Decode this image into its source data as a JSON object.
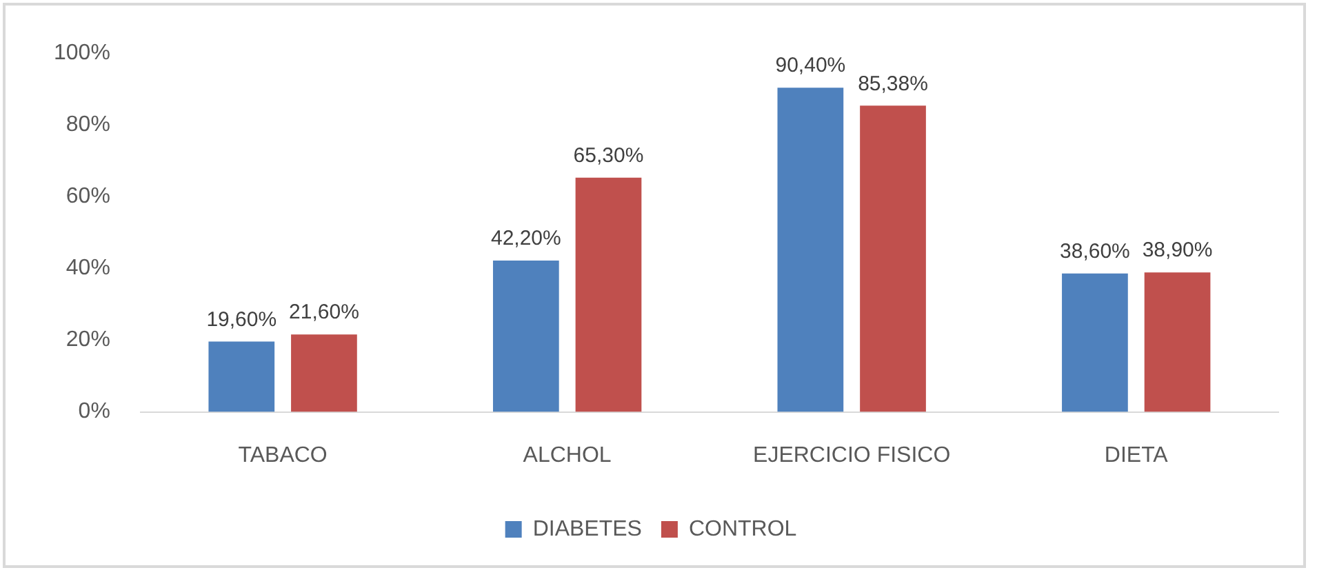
{
  "chart_data": {
    "type": "bar",
    "categories": [
      "TABACO",
      "ALCHOL",
      "EJERCICIO FISICO",
      "DIETA"
    ],
    "series": [
      {
        "name": "DIABETES",
        "color": "#4f81bd",
        "values": [
          19.6,
          42.2,
          90.4,
          38.6
        ],
        "value_labels": [
          "19,60%",
          "42,20%",
          "90,40%",
          "38,60%"
        ]
      },
      {
        "name": "CONTROL",
        "color": "#c0504d",
        "values": [
          21.6,
          65.3,
          85.38,
          38.9
        ],
        "value_labels": [
          "21,60%",
          "65,30%",
          "85,38%",
          "38,90%"
        ]
      }
    ],
    "ylim": [
      0,
      100
    ],
    "yticks": [
      {
        "value": 0,
        "label": "0%"
      },
      {
        "value": 20,
        "label": "20%"
      },
      {
        "value": 40,
        "label": "40%"
      },
      {
        "value": 60,
        "label": "60%"
      },
      {
        "value": 80,
        "label": "80%"
      },
      {
        "value": 100,
        "label": "100%"
      }
    ],
    "grid": false,
    "legend": "bottom"
  }
}
